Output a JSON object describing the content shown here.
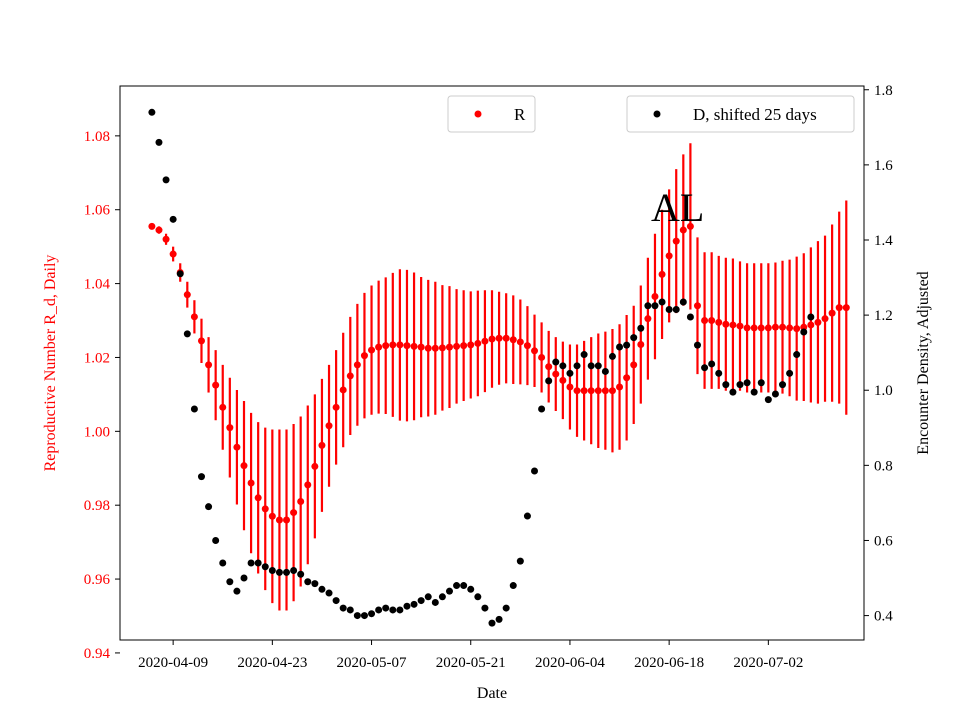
{
  "chart_data": {
    "type": "scatter",
    "xlabel": "Date",
    "ylabel_left": "Reproductive Number R_d, Daily",
    "ylabel_right": "Encounter Density, Adjusted",
    "annotation": "AL",
    "x_ticks": [
      "2020-04-09",
      "2020-04-23",
      "2020-05-07",
      "2020-05-21",
      "2020-06-04",
      "2020-06-18",
      "2020-07-02"
    ],
    "y_left_ticks": [
      "0.94",
      "0.96",
      "0.98",
      "1.00",
      "1.02",
      "1.04",
      "1.06",
      "1.08"
    ],
    "y_right_ticks": [
      "0.4",
      "0.6",
      "0.8",
      "1.0",
      "1.2",
      "1.4",
      "1.6",
      "1.8"
    ],
    "ylim_left": [
      0.9435,
      1.0935
    ],
    "ylim_right": [
      0.335,
      1.81
    ],
    "xlim_days": [
      -7.5,
      97.5
    ],
    "x_start_date": "2020-04-09",
    "legend": {
      "left_series": "R",
      "right_series": "D, shifted 25 days",
      "left_position": "top-center",
      "right_position": "top-right"
    },
    "colors": {
      "R": "#ff0000",
      "D": "#000000"
    },
    "R_series": {
      "name": "R",
      "start_offset": -3,
      "values": [
        1.0555,
        1.0545,
        1.052,
        1.048,
        1.043,
        1.037,
        1.031,
        1.0245,
        1.018,
        1.0125,
        1.0065,
        1.001,
        0.9957,
        0.9907,
        0.986,
        0.982,
        0.979,
        0.977,
        0.976,
        0.976,
        0.978,
        0.981,
        0.9855,
        0.9905,
        0.9962,
        1.0015,
        1.0065,
        1.0112,
        1.015,
        1.018,
        1.0205,
        1.022,
        1.0228,
        1.0232,
        1.0234,
        1.0234,
        1.0232,
        1.023,
        1.0228,
        1.0225,
        1.0225,
        1.0226,
        1.0228,
        1.023,
        1.0232,
        1.0234,
        1.0238,
        1.0244,
        1.025,
        1.0252,
        1.0252,
        1.0248,
        1.0242,
        1.0232,
        1.0218,
        1.02,
        1.0175,
        1.0155,
        1.0138,
        1.012,
        1.011,
        1.011,
        1.011,
        1.011,
        1.011,
        1.011,
        1.012,
        1.0145,
        1.018,
        1.0235,
        1.0305,
        1.0365,
        1.0425,
        1.0475,
        1.0515,
        1.0545,
        1.0555,
        1.034,
        1.03,
        1.03,
        1.0295,
        1.029,
        1.0288,
        1.0285,
        1.028,
        1.028,
        1.028,
        1.028,
        1.0282,
        1.0282,
        1.028,
        1.0278,
        1.0282,
        1.0288,
        1.0295,
        1.0305,
        1.032,
        1.0335,
        1.0335
      ],
      "errors": [
        0.0005,
        0.001,
        0.0015,
        0.002,
        0.0025,
        0.0035,
        0.0045,
        0.006,
        0.0075,
        0.0095,
        0.0115,
        0.0135,
        0.0155,
        0.0175,
        0.019,
        0.0205,
        0.022,
        0.0235,
        0.0245,
        0.0245,
        0.024,
        0.023,
        0.0215,
        0.0195,
        0.018,
        0.0165,
        0.0155,
        0.0155,
        0.016,
        0.0165,
        0.017,
        0.0175,
        0.018,
        0.0185,
        0.0195,
        0.0205,
        0.0205,
        0.02,
        0.019,
        0.0185,
        0.018,
        0.017,
        0.0165,
        0.0155,
        0.015,
        0.0145,
        0.0143,
        0.0138,
        0.0132,
        0.0126,
        0.0122,
        0.012,
        0.0115,
        0.0107,
        0.0098,
        0.0095,
        0.0097,
        0.01,
        0.0105,
        0.0115,
        0.0125,
        0.0135,
        0.0145,
        0.0155,
        0.016,
        0.0167,
        0.017,
        0.017,
        0.016,
        0.016,
        0.0165,
        0.017,
        0.0175,
        0.018,
        0.0195,
        0.0205,
        0.0225,
        0.0185,
        0.0185,
        0.0185,
        0.018,
        0.018,
        0.018,
        0.0175,
        0.0175,
        0.0175,
        0.0175,
        0.0175,
        0.0175,
        0.018,
        0.0185,
        0.0195,
        0.02,
        0.021,
        0.022,
        0.0225,
        0.024,
        0.026,
        0.029
      ]
    },
    "D_series": {
      "name": "D, shifted 25 days",
      "start_offset": -3,
      "values": [
        1.74,
        1.66,
        1.56,
        1.455,
        1.31,
        1.15,
        0.95,
        0.77,
        0.69,
        0.6,
        0.54,
        0.49,
        0.465,
        0.5,
        0.54,
        0.54,
        0.53,
        0.52,
        0.515,
        0.515,
        0.52,
        0.51,
        0.49,
        0.485,
        0.47,
        0.46,
        0.44,
        0.42,
        0.415,
        0.4,
        0.4,
        0.405,
        0.415,
        0.42,
        0.415,
        0.415,
        0.425,
        0.43,
        0.44,
        0.45,
        0.435,
        0.45,
        0.465,
        0.48,
        0.48,
        0.47,
        0.45,
        0.42,
        0.38,
        0.39,
        0.42,
        0.48,
        0.545,
        0.665,
        0.785,
        0.95,
        1.025,
        1.075,
        1.065,
        1.045,
        1.065,
        1.095,
        1.065,
        1.065,
        1.05,
        1.09,
        1.115,
        1.12,
        1.14,
        1.165,
        1.225,
        1.225,
        1.235,
        1.215,
        1.215,
        1.235,
        1.195,
        1.12,
        1.06,
        1.07,
        1.045,
        1.015,
        0.995,
        1.015,
        1.02,
        0.995,
        1.02,
        0.975,
        0.99,
        1.015,
        1.045,
        1.095,
        1.155,
        1.195
      ]
    }
  }
}
